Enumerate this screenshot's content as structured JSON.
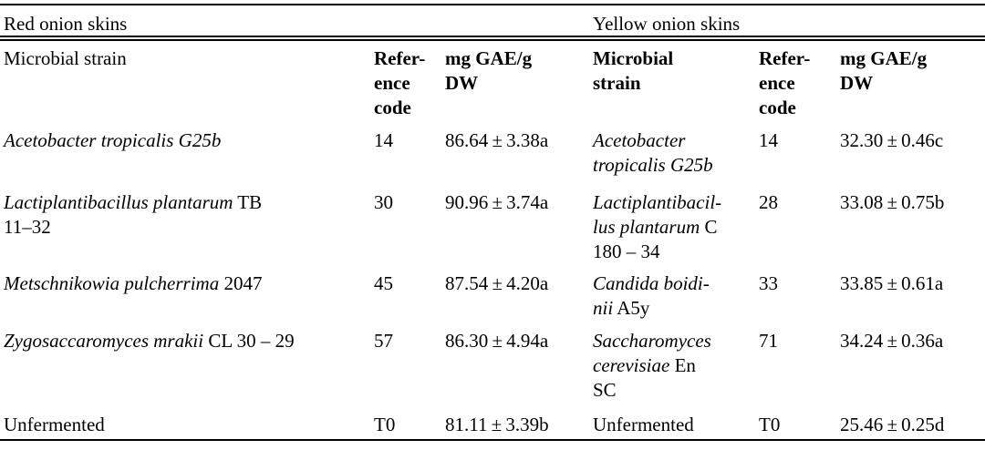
{
  "page": {
    "background_color": "#ffffff",
    "text_color": "#000000",
    "rule_color": "#000000"
  },
  "table": {
    "sections": [
      {
        "title": "Red onion skins",
        "columns": {
          "strain_label": "Microbial strain",
          "ref_label_lines": [
            "Refer-",
            "ence",
            "code"
          ],
          "value_label_lines": [
            "mg GAE/g",
            "DW"
          ]
        },
        "rows": [
          {
            "strain_lines": [
              [
                {
                  "t": "Acetobacter tropicalis G25b",
                  "i": true
                }
              ]
            ],
            "ref": "14",
            "value": "86.64 ± 3.38a"
          },
          {
            "strain_lines": [
              [
                {
                  "t": "Lactiplantibacillus plantarum",
                  "i": true
                },
                {
                  "t": " TB",
                  "i": false
                }
              ],
              [
                {
                  "t": "11–32",
                  "i": false
                }
              ]
            ],
            "ref": "30",
            "value": "90.96 ± 3.74a"
          },
          {
            "strain_lines": [
              [
                {
                  "t": "Metschnikowia pulcherrima",
                  "i": true
                },
                {
                  "t": " 2047",
                  "i": false
                }
              ]
            ],
            "ref": "45",
            "value": "87.54 ± 4.20a"
          },
          {
            "strain_lines": [
              [
                {
                  "t": "Zygosaccaromyces mrakii",
                  "i": true
                },
                {
                  "t": " CL 30 – 29",
                  "i": false
                }
              ]
            ],
            "ref": "57",
            "value": "86.30 ± 4.94a"
          },
          {
            "strain_lines": [
              [
                {
                  "t": "Unfermented",
                  "i": false
                }
              ]
            ],
            "ref": "T0",
            "value": "81.11 ± 3.39b"
          }
        ]
      },
      {
        "title": "Yellow onion skins",
        "columns": {
          "strain_label_lines": [
            "Microbial",
            "strain"
          ],
          "ref_label_lines": [
            "Refer-",
            "ence",
            "code"
          ],
          "value_label_lines": [
            "mg GAE/g",
            "DW"
          ]
        },
        "rows": [
          {
            "strain_lines": [
              [
                {
                  "t": "Acetobacter",
                  "i": true
                }
              ],
              [
                {
                  "t": "tropicalis G25b",
                  "i": true
                }
              ]
            ],
            "ref": "14",
            "value": "32.30 ± 0.46c"
          },
          {
            "strain_lines": [
              [
                {
                  "t": "Lactiplantibacil-",
                  "i": true
                }
              ],
              [
                {
                  "t": "lus plantarum",
                  "i": true
                },
                {
                  "t": " C",
                  "i": false
                }
              ],
              [
                {
                  "t": "180 – 34",
                  "i": false
                }
              ]
            ],
            "ref": "28",
            "value": "33.08 ± 0.75b"
          },
          {
            "strain_lines": [
              [
                {
                  "t": "Candida boidi-",
                  "i": true
                }
              ],
              [
                {
                  "t": "nii",
                  "i": true
                },
                {
                  "t": " A5y",
                  "i": false
                }
              ]
            ],
            "ref": "33",
            "value": "33.85 ± 0.61a"
          },
          {
            "strain_lines": [
              [
                {
                  "t": "Saccharomyces",
                  "i": true
                }
              ],
              [
                {
                  "t": "cerevisiae",
                  "i": true
                },
                {
                  "t": " En",
                  "i": false
                }
              ],
              [
                {
                  "t": "SC",
                  "i": false
                }
              ]
            ],
            "ref": "71",
            "value": "34.24 ± 0.36a"
          },
          {
            "strain_lines": [
              [
                {
                  "t": "Unfermented",
                  "i": false
                }
              ]
            ],
            "ref": "T0",
            "value": "25.46 ± 0.25d"
          }
        ]
      }
    ]
  }
}
